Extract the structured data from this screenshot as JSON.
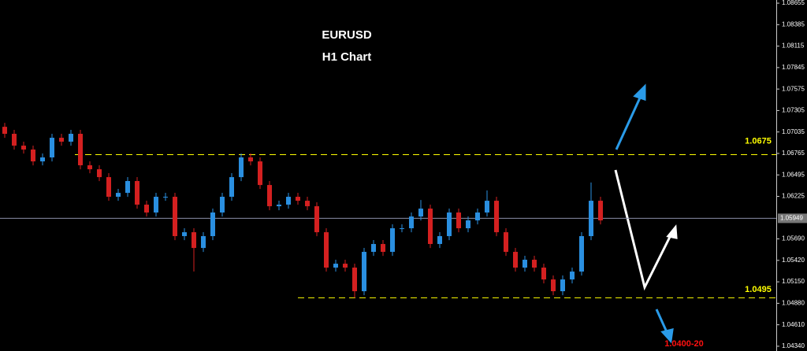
{
  "chart_data": {
    "type": "candlestick",
    "title": "EURUSD",
    "subtitle": "H1 Chart",
    "open": [
      1.071,
      1.07012,
      1.06863,
      1.06814,
      1.06665,
      1.06715,
      1.06962,
      1.06913,
      1.07012,
      1.06616,
      1.06566,
      1.06467,
      1.0622,
      1.06269,
      1.06418,
      1.06121,
      1.06022,
      1.0622,
      1.0622,
      1.05725,
      1.05774,
      1.05576,
      1.05725,
      1.06022,
      1.0622,
      1.06467,
      1.06715,
      1.06665,
      1.06368,
      1.06101,
      1.06121,
      1.0622,
      1.0617,
      1.06101,
      1.05774,
      1.05329,
      1.05378,
      1.05329,
      1.05032,
      1.05527,
      1.05626,
      1.05527,
      1.05824,
      1.05824,
      1.05972,
      1.06071,
      1.05626,
      1.05725,
      1.06022,
      1.05824,
      1.05923,
      1.06022,
      1.0617,
      1.05774,
      1.05527,
      1.05329,
      1.05428,
      1.05329,
      1.0518,
      1.05032,
      1.0518,
      1.05279,
      1.05725,
      1.0617
    ],
    "high": [
      1.0715,
      1.07062,
      1.06913,
      1.06864,
      1.06765,
      1.07012,
      1.07012,
      1.07062,
      1.07062,
      1.06666,
      1.06616,
      1.06517,
      1.06319,
      1.06468,
      1.06468,
      1.06171,
      1.0627,
      1.0627,
      1.0627,
      1.05824,
      1.05824,
      1.05775,
      1.06072,
      1.0627,
      1.06517,
      1.06765,
      1.06765,
      1.06715,
      1.06418,
      1.06171,
      1.0627,
      1.0627,
      1.0622,
      1.06151,
      1.05824,
      1.05428,
      1.05428,
      1.05379,
      1.05577,
      1.05676,
      1.05676,
      1.05874,
      1.05874,
      1.06022,
      1.0618,
      1.06121,
      1.05775,
      1.06072,
      1.06072,
      1.05973,
      1.06072,
      1.063,
      1.0622,
      1.05824,
      1.05577,
      1.05478,
      1.05478,
      1.05379,
      1.0523,
      1.0523,
      1.05329,
      1.05775,
      1.064,
      1.0622
    ],
    "low": [
      1.06962,
      1.06813,
      1.06764,
      1.06615,
      1.06615,
      1.06665,
      1.06863,
      1.06863,
      1.06566,
      1.06516,
      1.06417,
      1.0617,
      1.0617,
      1.06219,
      1.06071,
      1.05972,
      1.05972,
      1.0617,
      1.05675,
      1.05675,
      1.0528,
      1.05526,
      1.05675,
      1.05972,
      1.0617,
      1.06417,
      1.06615,
      1.06318,
      1.06051,
      1.06051,
      1.06071,
      1.0612,
      1.06051,
      1.05724,
      1.05279,
      1.05279,
      1.05279,
      1.0495,
      1.04982,
      1.05477,
      1.05477,
      1.05477,
      1.05774,
      1.05774,
      1.05922,
      1.05576,
      1.05576,
      1.05675,
      1.05774,
      1.05774,
      1.05873,
      1.05972,
      1.05724,
      1.05477,
      1.05279,
      1.05279,
      1.05279,
      1.0513,
      1.04982,
      1.04982,
      1.0513,
      1.05229,
      1.05675,
      1.05873
    ],
    "close": [
      1.07012,
      1.06863,
      1.06814,
      1.06665,
      1.06715,
      1.06962,
      1.06913,
      1.07012,
      1.06616,
      1.06566,
      1.06467,
      1.0622,
      1.06269,
      1.06418,
      1.06121,
      1.06022,
      1.0622,
      1.0622,
      1.05725,
      1.05774,
      1.05576,
      1.05725,
      1.06022,
      1.0622,
      1.06467,
      1.06715,
      1.06665,
      1.06368,
      1.06101,
      1.06121,
      1.0622,
      1.0617,
      1.06101,
      1.05774,
      1.05329,
      1.05378,
      1.05329,
      1.05032,
      1.05527,
      1.05626,
      1.05527,
      1.05824,
      1.05824,
      1.05972,
      1.06071,
      1.05626,
      1.05725,
      1.06022,
      1.05824,
      1.05923,
      1.06022,
      1.0617,
      1.05774,
      1.05527,
      1.05329,
      1.05428,
      1.05329,
      1.0518,
      1.05032,
      1.0518,
      1.05279,
      1.05725,
      1.0617,
      1.05923
    ],
    "up_color": "#2a8fe0",
    "down_color": "#d42020",
    "ylim": [
      1.0428,
      1.08695
    ],
    "yticks": [
      1.08655,
      1.08385,
      1.08115,
      1.07845,
      1.07575,
      1.07305,
      1.07035,
      1.06765,
      1.06495,
      1.06225,
      {
        "value": 1.0569,
        "label": "1.05690"
      },
      {
        "value": 1.0542,
        "label": "1.05420"
      },
      {
        "value": 1.0515,
        "label": "1.05150"
      },
      {
        "value": 1.0488,
        "label": "1.04880"
      },
      {
        "value": 1.0461,
        "label": "1.04610"
      },
      {
        "value": 1.0434,
        "label": "1.04340"
      }
    ],
    "current_price": 1.05949,
    "levels": [
      1.0675,
      1.0495
    ],
    "level_color": "#ffff00",
    "target": "1.0400-20",
    "target_color": "#ff1010"
  }
}
